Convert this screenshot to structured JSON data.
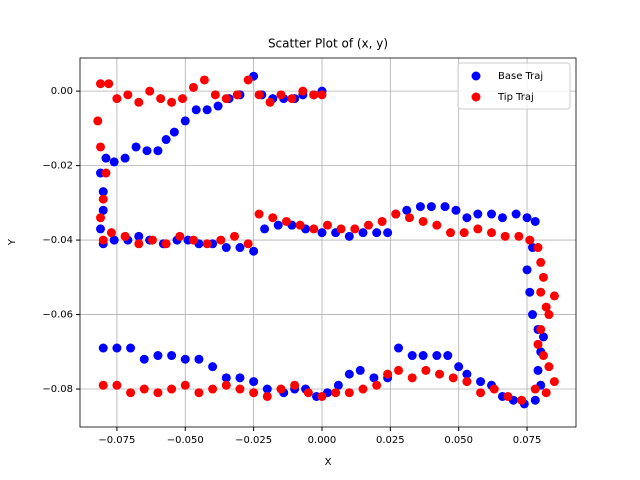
{
  "chart_data": {
    "type": "scatter",
    "title": "Scatter Plot of (x, y)",
    "x_label": "X",
    "y_label": "Y",
    "grid": true,
    "legend": "upper right",
    "xlim": [
      -0.0885,
      0.0929
    ],
    "ylim": [
      -0.0902,
      0.0089
    ],
    "xticks": [
      {
        "value": -0.075,
        "label": "−0.075"
      },
      {
        "value": -0.05,
        "label": "−0.050"
      },
      {
        "value": -0.025,
        "label": "−0.025"
      },
      {
        "value": 0,
        "label": "0.000"
      },
      {
        "value": 0.025,
        "label": "0.025"
      },
      {
        "value": 0.05,
        "label": "0.050"
      },
      {
        "value": 0.075,
        "label": "0.075"
      }
    ],
    "yticks": [
      {
        "value": 0,
        "label": "0.00"
      },
      {
        "value": -0.02,
        "label": "−0.02"
      },
      {
        "value": -0.04,
        "label": "−0.04"
      },
      {
        "value": -0.06,
        "label": "−0.06"
      },
      {
        "value": -0.08,
        "label": "−0.08"
      }
    ],
    "series": [
      {
        "name": "Base Traj",
        "color": "#0000ff",
        "x": [
          0,
          -0.003,
          -0.007,
          -0.01,
          -0.014,
          -0.018,
          -0.022,
          -0.025,
          -0.03,
          -0.034,
          -0.038,
          -0.042,
          -0.046,
          -0.05,
          -0.054,
          -0.057,
          -0.06,
          -0.064,
          -0.068,
          -0.072,
          -0.076,
          -0.079,
          -0.081,
          -0.08,
          -0.08,
          -0.081,
          -0.08,
          -0.076,
          -0.071,
          -0.067,
          -0.063,
          -0.058,
          -0.053,
          -0.049,
          -0.045,
          -0.04,
          -0.035,
          -0.03,
          -0.025,
          -0.021,
          -0.016,
          -0.011,
          -0.006,
          0,
          0.005,
          0.01,
          0.015,
          0.02,
          0.024,
          0.027,
          0.031,
          0.036,
          0.04,
          0.045,
          0.049,
          0.053,
          0.057,
          0.062,
          0.066,
          0.071,
          0.075,
          0.078,
          0.077,
          0.075,
          0.076,
          0.077,
          0.079,
          0.081,
          0.08,
          0.079,
          0.08,
          0.078,
          0.074,
          0.07,
          0.066,
          0.062,
          0.058,
          0.053,
          0.05,
          0.046,
          0.042,
          0.037,
          0.033,
          0.028,
          0.024,
          0.019,
          0.014,
          0.01,
          0.006,
          0.002,
          -0.002,
          -0.006,
          -0.01,
          -0.014,
          -0.02,
          -0.025,
          -0.03,
          -0.035,
          -0.04,
          -0.045,
          -0.05,
          -0.055,
          -0.06,
          -0.065,
          -0.07,
          -0.075,
          -0.08
        ],
        "values": [
          0,
          -0.001,
          -0.001,
          -0.002,
          -0.002,
          -0.002,
          -0.001,
          0.004,
          -0.001,
          -0.002,
          -0.004,
          -0.005,
          -0.005,
          -0.008,
          -0.011,
          -0.013,
          -0.016,
          -0.016,
          -0.015,
          -0.018,
          -0.019,
          -0.018,
          -0.022,
          -0.027,
          -0.032,
          -0.037,
          -0.041,
          -0.04,
          -0.04,
          -0.039,
          -0.04,
          -0.041,
          -0.04,
          -0.04,
          -0.041,
          -0.041,
          -0.042,
          -0.042,
          -0.043,
          -0.037,
          -0.036,
          -0.036,
          -0.037,
          -0.038,
          -0.038,
          -0.039,
          -0.038,
          -0.038,
          -0.038,
          -0.033,
          -0.032,
          -0.031,
          -0.031,
          -0.031,
          -0.032,
          -0.034,
          -0.033,
          -0.033,
          -0.034,
          -0.033,
          -0.034,
          -0.035,
          -0.042,
          -0.048,
          -0.054,
          -0.06,
          -0.064,
          -0.066,
          -0.07,
          -0.075,
          -0.079,
          -0.083,
          -0.084,
          -0.083,
          -0.082,
          -0.079,
          -0.078,
          -0.076,
          -0.074,
          -0.071,
          -0.071,
          -0.071,
          -0.071,
          -0.069,
          -0.077,
          -0.077,
          -0.075,
          -0.076,
          -0.079,
          -0.081,
          -0.082,
          -0.08,
          -0.08,
          -0.081,
          -0.08,
          -0.078,
          -0.077,
          -0.077,
          -0.074,
          -0.072,
          -0.072,
          -0.071,
          -0.071,
          -0.072,
          -0.069,
          -0.069,
          -0.069
        ]
      },
      {
        "name": "Tip Traj",
        "color": "#ff0000",
        "x": [
          0,
          -0.003,
          -0.007,
          -0.011,
          -0.015,
          -0.019,
          -0.023,
          -0.027,
          -0.031,
          -0.035,
          -0.039,
          -0.043,
          -0.047,
          -0.051,
          -0.055,
          -0.059,
          -0.063,
          -0.067,
          -0.071,
          -0.075,
          -0.078,
          -0.081,
          -0.082,
          -0.081,
          -0.079,
          -0.08,
          -0.081,
          -0.08,
          -0.077,
          -0.072,
          -0.067,
          -0.062,
          -0.057,
          -0.052,
          -0.047,
          -0.042,
          -0.037,
          -0.032,
          -0.027,
          -0.023,
          -0.018,
          -0.013,
          -0.008,
          -0.003,
          0.002,
          0.007,
          0.012,
          0.017,
          0.022,
          0.027,
          0.032,
          0.037,
          0.042,
          0.047,
          0.052,
          0.057,
          0.062,
          0.067,
          0.072,
          0.076,
          0.079,
          0.08,
          0.081,
          0.08,
          0.082,
          0.085,
          0.083,
          0.08,
          0.079,
          0.081,
          0.083,
          0.085,
          0.082,
          0.078,
          0.073,
          0.068,
          0.063,
          0.058,
          0.053,
          0.048,
          0.043,
          0.038,
          0.033,
          0.028,
          0.024,
          0.02,
          0.015,
          0.01,
          0.005,
          0,
          -0.005,
          -0.01,
          -0.015,
          -0.02,
          -0.025,
          -0.03,
          -0.035,
          -0.04,
          -0.045,
          -0.05,
          -0.055,
          -0.06,
          -0.065,
          -0.07,
          -0.075,
          -0.08
        ],
        "values": [
          -0.001,
          -0.001,
          0,
          -0.002,
          -0.001,
          -0.003,
          -0.001,
          0.003,
          -0.001,
          -0.002,
          -0.001,
          0.003,
          0.001,
          -0.002,
          -0.003,
          -0.002,
          0,
          -0.003,
          -0.001,
          -0.002,
          0.002,
          0.002,
          -0.008,
          -0.015,
          -0.022,
          -0.029,
          -0.034,
          -0.04,
          -0.038,
          -0.039,
          -0.041,
          -0.04,
          -0.041,
          -0.039,
          -0.04,
          -0.041,
          -0.04,
          -0.039,
          -0.041,
          -0.033,
          -0.034,
          -0.035,
          -0.036,
          -0.037,
          -0.036,
          -0.037,
          -0.037,
          -0.036,
          -0.035,
          -0.033,
          -0.034,
          -0.035,
          -0.036,
          -0.038,
          -0.038,
          -0.037,
          -0.038,
          -0.039,
          -0.039,
          -0.04,
          -0.042,
          -0.046,
          -0.05,
          -0.054,
          -0.058,
          -0.055,
          -0.06,
          -0.064,
          -0.068,
          -0.071,
          -0.074,
          -0.078,
          -0.081,
          -0.08,
          -0.083,
          -0.082,
          -0.08,
          -0.081,
          -0.078,
          -0.077,
          -0.076,
          -0.075,
          -0.077,
          -0.075,
          -0.076,
          -0.079,
          -0.08,
          -0.081,
          -0.081,
          -0.082,
          -0.081,
          -0.079,
          -0.08,
          -0.082,
          -0.081,
          -0.08,
          -0.079,
          -0.08,
          -0.081,
          -0.079,
          -0.08,
          -0.081,
          -0.08,
          -0.081,
          -0.079,
          -0.079
        ]
      }
    ]
  }
}
